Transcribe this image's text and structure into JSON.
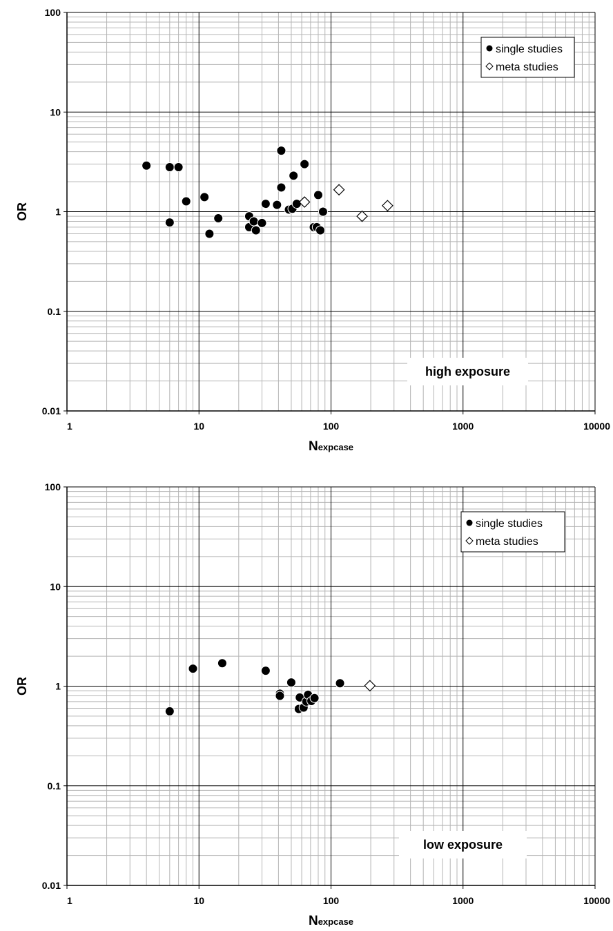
{
  "chart_data": [
    {
      "type": "scatter",
      "xscale": "log",
      "yscale": "log",
      "xlim": [
        1,
        10000
      ],
      "ylim": [
        0.01,
        100
      ],
      "x_ticks": [
        "1",
        "10",
        "100",
        "1000",
        "10000"
      ],
      "y_ticks": [
        "100",
        "10",
        "1",
        "0.1",
        "0.01"
      ],
      "xlabel_main": "N",
      "xlabel_sub": "expcase",
      "ylabel": "OR",
      "grid": true,
      "legend_position": "top-right",
      "annotation": "high exposure",
      "series": [
        {
          "name": "single studies",
          "marker": "filled-circle",
          "color": "#000000",
          "points": [
            [
              4,
              2.9
            ],
            [
              6,
              2.8
            ],
            [
              7,
              2.8
            ],
            [
              6,
              0.78
            ],
            [
              8,
              1.27
            ],
            [
              11,
              1.4
            ],
            [
              12,
              0.6
            ],
            [
              14,
              0.86
            ],
            [
              24,
              0.9
            ],
            [
              24,
              0.7
            ],
            [
              26,
              0.8
            ],
            [
              27,
              0.65
            ],
            [
              30,
              0.77
            ],
            [
              32,
              1.2
            ],
            [
              39,
              1.17
            ],
            [
              42,
              4.1
            ],
            [
              42,
              1.75
            ],
            [
              48,
              1.05
            ],
            [
              51,
              1.07
            ],
            [
              52,
              2.3
            ],
            [
              55,
              1.2
            ],
            [
              63,
              3.0
            ],
            [
              74,
              0.7
            ],
            [
              78,
              0.7
            ],
            [
              80,
              1.47
            ],
            [
              83,
              0.65
            ],
            [
              87,
              1.0
            ]
          ]
        },
        {
          "name": "meta studies",
          "marker": "open-diamond",
          "color": "#000000",
          "points": [
            [
              63,
              1.25
            ],
            [
              115,
              1.66
            ],
            [
              172,
              0.9
            ],
            [
              268,
              1.15
            ]
          ]
        }
      ]
    },
    {
      "type": "scatter",
      "xscale": "log",
      "yscale": "log",
      "xlim": [
        1,
        10000
      ],
      "ylim": [
        0.01,
        100
      ],
      "x_ticks": [
        "1",
        "10",
        "100",
        "1000",
        "10000"
      ],
      "y_ticks": [
        "100",
        "10",
        "1",
        "0.1",
        "0.01"
      ],
      "xlabel_main": "N",
      "xlabel_sub": "expcase",
      "ylabel": "OR",
      "grid": true,
      "legend_position": "top-right",
      "annotation": "low exposure",
      "series": [
        {
          "name": "single studies",
          "marker": "filled-circle",
          "color": "#000000",
          "points": [
            [
              6,
              0.56
            ],
            [
              9,
              1.5
            ],
            [
              15,
              1.7
            ],
            [
              32,
              1.43
            ],
            [
              41,
              0.84
            ],
            [
              41,
              0.8
            ],
            [
              50,
              1.09
            ],
            [
              57,
              0.59
            ],
            [
              58,
              0.77
            ],
            [
              62,
              0.61
            ],
            [
              65,
              0.7
            ],
            [
              67,
              0.82
            ],
            [
              71,
              0.71
            ],
            [
              75,
              0.76
            ],
            [
              117,
              1.07
            ]
          ]
        },
        {
          "name": "meta studies",
          "marker": "open-diamond",
          "color": "#000000",
          "points": [
            [
              197,
              1.01
            ]
          ]
        }
      ]
    }
  ]
}
